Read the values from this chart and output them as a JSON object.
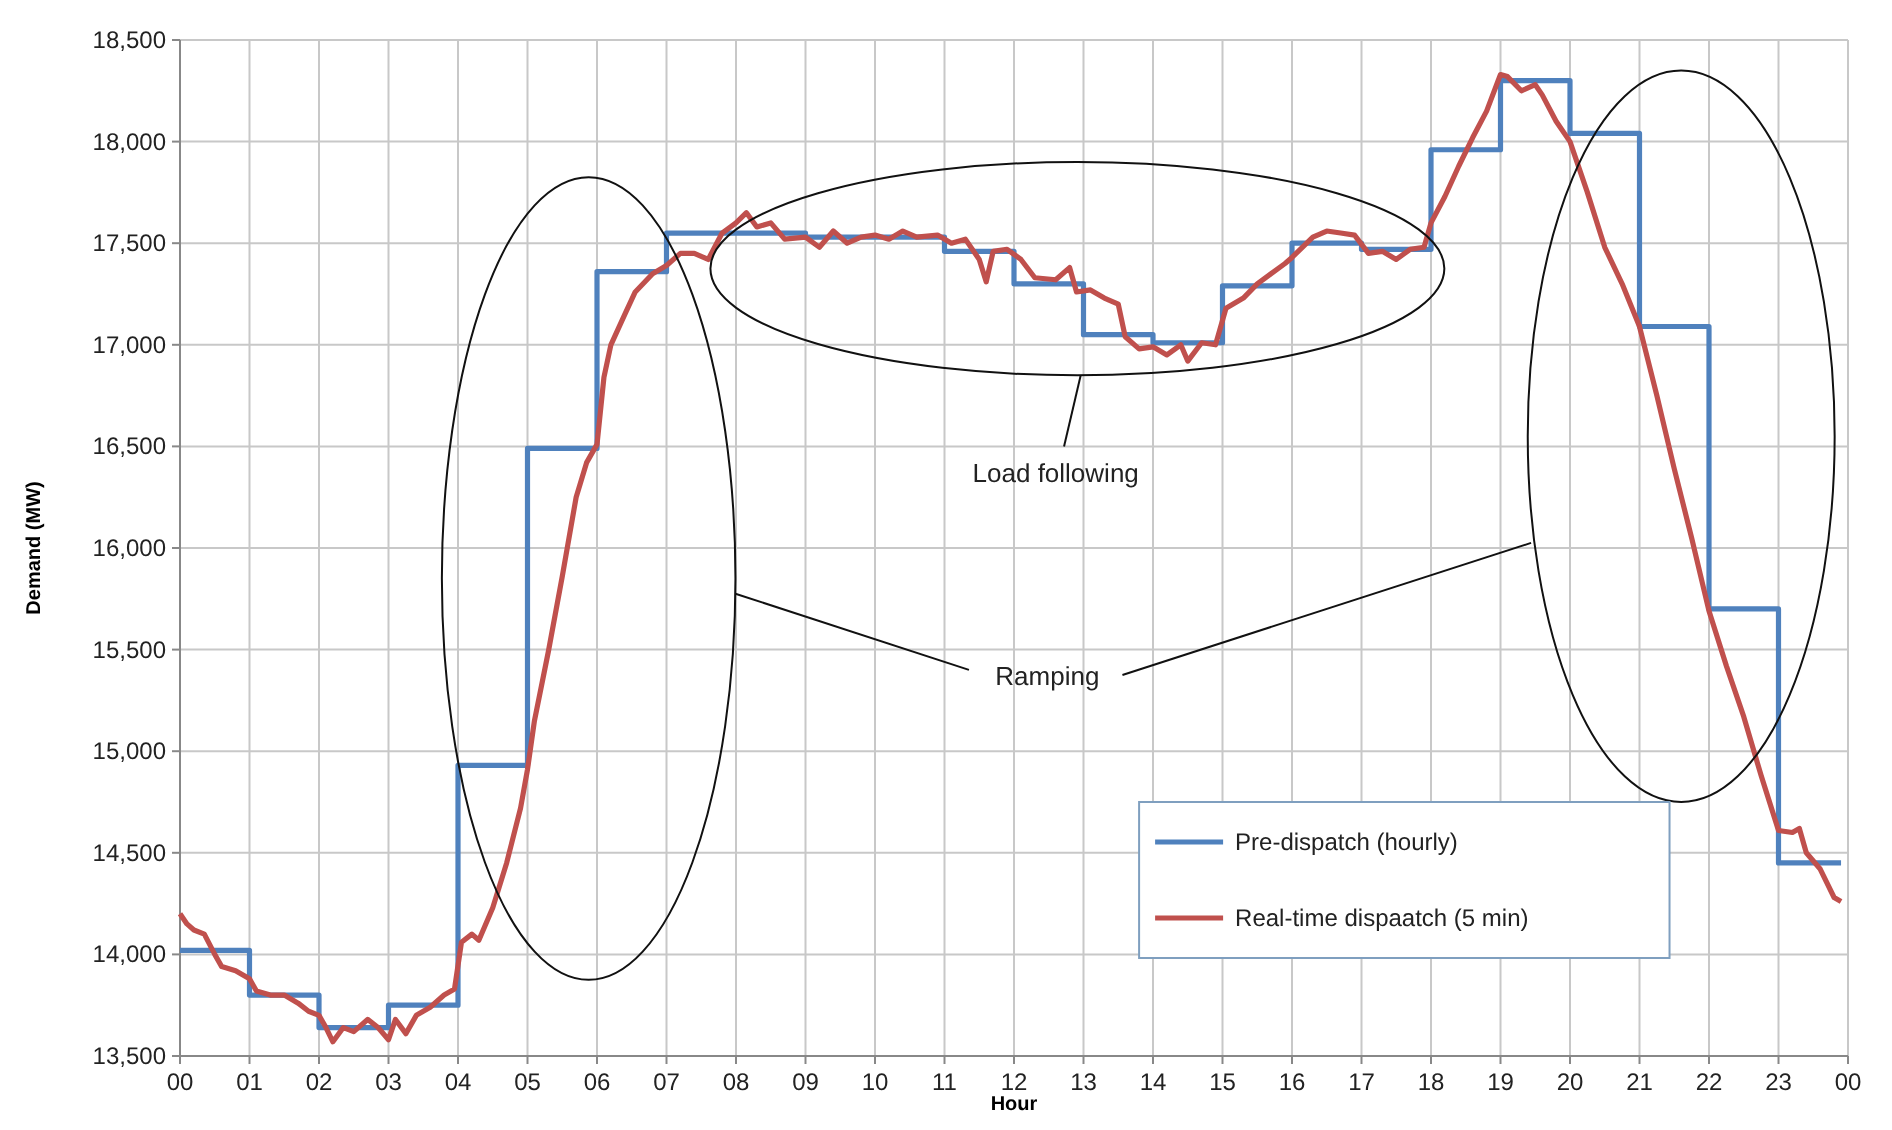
{
  "chart_data": {
    "type": "line",
    "xlabel": "Hour",
    "ylabel": "Demand (MW)",
    "xlim": [
      0,
      24
    ],
    "ylim": [
      13500,
      18500
    ],
    "xticks": [
      {
        "value": 0,
        "label": "00"
      },
      {
        "value": 1,
        "label": "01"
      },
      {
        "value": 2,
        "label": "02"
      },
      {
        "value": 3,
        "label": "03"
      },
      {
        "value": 4,
        "label": "04"
      },
      {
        "value": 5,
        "label": "05"
      },
      {
        "value": 6,
        "label": "06"
      },
      {
        "value": 7,
        "label": "07"
      },
      {
        "value": 8,
        "label": "08"
      },
      {
        "value": 9,
        "label": "09"
      },
      10,
      11,
      12,
      13,
      14,
      15,
      16,
      17,
      18,
      19,
      20,
      21,
      22,
      23,
      {
        "value": 24,
        "label": "00"
      }
    ],
    "yticks": [
      {
        "value": 13500,
        "label": "13,500"
      },
      {
        "value": 14000,
        "label": "14,000"
      },
      {
        "value": 14500,
        "label": "14,500"
      },
      {
        "value": 15000,
        "label": "15,000"
      },
      {
        "value": 15500,
        "label": "15,500"
      },
      {
        "value": 16000,
        "label": "16,000"
      },
      {
        "value": 16500,
        "label": "16,500"
      },
      {
        "value": 17000,
        "label": "17,000"
      },
      {
        "value": 17500,
        "label": "17,500"
      },
      {
        "value": 18000,
        "label": "18,000"
      },
      {
        "value": 18500,
        "label": "18,500"
      }
    ],
    "grid": true,
    "legend": "bottom right",
    "marker": "none",
    "line_style": "solid",
    "annotations": [
      "Load following",
      "Ramping"
    ],
    "series": [
      {
        "name": "Pre-dispatch (hourly)",
        "type": "step",
        "color": "#4f81bd",
        "x": [
          0,
          1,
          2,
          3,
          4,
          5,
          6,
          7,
          8,
          9,
          10,
          11,
          12,
          13,
          14,
          15,
          16,
          17,
          18,
          19,
          20,
          21,
          22,
          23,
          23.9
        ],
        "values": [
          14020,
          13800,
          13640,
          13750,
          14930,
          16490,
          17360,
          17550,
          17550,
          17530,
          17530,
          17460,
          17300,
          17050,
          17010,
          17290,
          17500,
          17470,
          17960,
          18300,
          18040,
          17090,
          15700,
          14450,
          14450
        ]
      },
      {
        "name": "Real-time dispaatch (5 min)",
        "color": "#c0504d",
        "x": [
          0,
          0.1,
          0.2,
          0.35,
          0.5,
          0.6,
          0.8,
          1,
          1.1,
          1.3,
          1.5,
          1.7,
          1.85,
          2,
          2.1,
          2.2,
          2.35,
          2.5,
          2.7,
          2.85,
          3,
          3.1,
          3.25,
          3.4,
          3.6,
          3.8,
          3.95,
          4.05,
          4.2,
          4.3,
          4.5,
          4.7,
          4.9,
          5,
          5.1,
          5.3,
          5.5,
          5.7,
          5.85,
          6,
          6.1,
          6.2,
          6.4,
          6.55,
          6.8,
          7,
          7.2,
          7.4,
          7.6,
          7.8,
          8,
          8.15,
          8.3,
          8.5,
          8.7,
          9,
          9.2,
          9.4,
          9.6,
          9.8,
          10,
          10.2,
          10.4,
          10.6,
          10.9,
          11.1,
          11.3,
          11.5,
          11.6,
          11.7,
          11.9,
          12.1,
          12.3,
          12.6,
          12.8,
          12.9,
          13.1,
          13.3,
          13.5,
          13.6,
          13.8,
          14,
          14.2,
          14.4,
          14.5,
          14.7,
          14.9,
          15.05,
          15.3,
          15.5,
          15.7,
          15.9,
          16,
          16.3,
          16.5,
          16.7,
          16.9,
          17.1,
          17.3,
          17.5,
          17.7,
          17.9,
          18,
          18.2,
          18.4,
          18.6,
          18.8,
          19,
          19.1,
          19.3,
          19.5,
          19.6,
          19.8,
          20,
          20.25,
          20.5,
          20.75,
          21,
          21.25,
          21.5,
          21.75,
          22,
          22.25,
          22.5,
          22.75,
          23,
          23.2,
          23.3,
          23.4,
          23.6,
          23.8,
          23.9
        ],
        "values": [
          14200,
          14150,
          14120,
          14100,
          14000,
          13940,
          13920,
          13880,
          13820,
          13800,
          13800,
          13760,
          13720,
          13700,
          13640,
          13570,
          13640,
          13620,
          13680,
          13640,
          13580,
          13680,
          13610,
          13700,
          13740,
          13800,
          13830,
          14060,
          14100,
          14070,
          14230,
          14450,
          14720,
          14910,
          15150,
          15490,
          15860,
          16250,
          16420,
          16510,
          16840,
          17000,
          17150,
          17260,
          17350,
          17390,
          17450,
          17450,
          17420,
          17550,
          17600,
          17650,
          17580,
          17600,
          17520,
          17530,
          17480,
          17560,
          17500,
          17530,
          17540,
          17520,
          17560,
          17530,
          17540,
          17500,
          17520,
          17420,
          17310,
          17460,
          17470,
          17420,
          17330,
          17320,
          17380,
          17260,
          17270,
          17230,
          17200,
          17040,
          16980,
          16990,
          16950,
          17000,
          16920,
          17010,
          17000,
          17180,
          17230,
          17300,
          17350,
          17400,
          17430,
          17530,
          17560,
          17550,
          17540,
          17450,
          17460,
          17420,
          17470,
          17480,
          17600,
          17730,
          17880,
          18020,
          18150,
          18330,
          18320,
          18250,
          18280,
          18230,
          18100,
          18000,
          17750,
          17480,
          17300,
          17090,
          16750,
          16390,
          16050,
          15690,
          15420,
          15170,
          14880,
          14610,
          14600,
          14620,
          14500,
          14420,
          14280,
          14260
        ]
      }
    ]
  }
}
